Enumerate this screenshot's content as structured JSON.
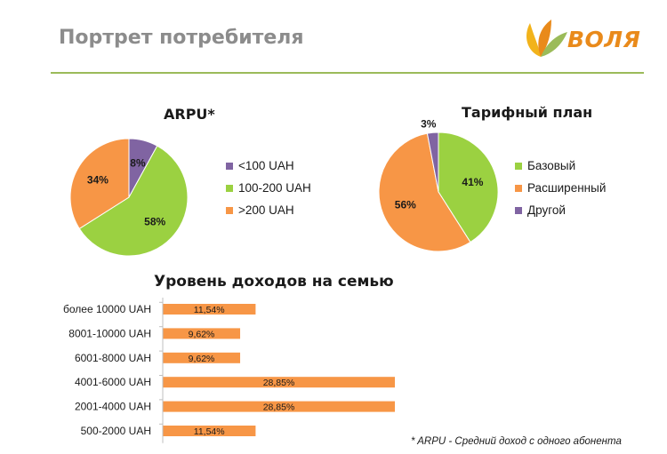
{
  "header": {
    "title": "Портрет потребителя",
    "logo_text": "ВОЛЯ",
    "accent_color": "#9bbb59",
    "brand_color": "#e98a1b"
  },
  "chart_data": [
    {
      "type": "pie",
      "title": "ARPU*",
      "slices": [
        {
          "label": "<100 UAH",
          "value": 8,
          "value_label": "8%",
          "color": "#8064a2"
        },
        {
          "label": "100-200 UAH",
          "value": 58,
          "value_label": "58%",
          "color": "#9bd141"
        },
        {
          "label": ">200 UAH",
          "value": 34,
          "value_label": "34%",
          "color": "#f79646"
        }
      ],
      "legend_position": "right"
    },
    {
      "type": "pie",
      "title": "Тарифный план",
      "slices": [
        {
          "label": "Базовый",
          "value": 41,
          "value_label": "41%",
          "color": "#9bd141"
        },
        {
          "label": "Расширенный",
          "value": 56,
          "value_label": "56%",
          "color": "#f79646"
        },
        {
          "label": "Другой",
          "value": 3,
          "value_label": "3%",
          "color": "#8064a2"
        }
      ],
      "legend_position": "right"
    },
    {
      "type": "bar",
      "orientation": "horizontal",
      "title": "Уровень доходов на семью",
      "categories": [
        "более 10000 UAH",
        "8001-10000 UAH",
        "6001-8000 UAH",
        "4001-6000 UAH",
        "2001-4000 UAH",
        "500-2000 UAH"
      ],
      "values": [
        11.54,
        9.62,
        9.62,
        28.85,
        28.85,
        11.54
      ],
      "value_labels": [
        "11,54%",
        "9,62%",
        "9,62%",
        "28,85%",
        "28,85%",
        "11,54%"
      ],
      "color": "#f79646",
      "xlim": [
        0,
        30
      ],
      "grid": false
    }
  ],
  "footnote": "* ARPU - Средний доход с одного абонента"
}
